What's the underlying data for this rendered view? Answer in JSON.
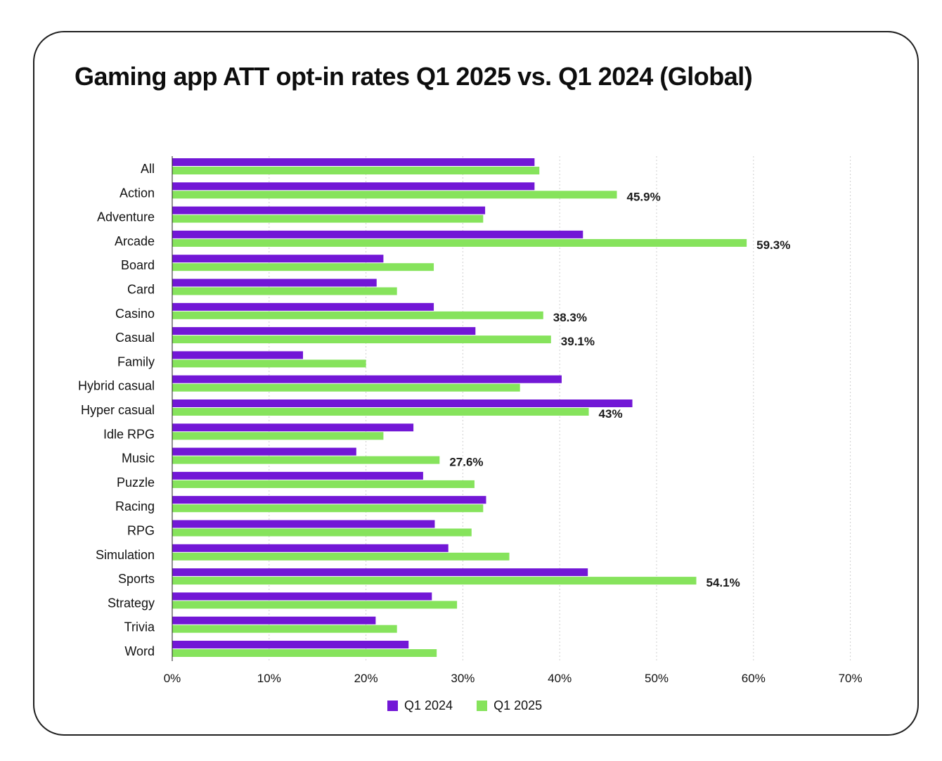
{
  "title": "Gaming app ATT opt-in rates Q1 2025 vs. Q1 2024 (Global)",
  "colors": {
    "q1_2024": "#7217d6",
    "q1_2025": "#86e35c",
    "grid": "#cfcfcf",
    "axis": "#222222"
  },
  "chart_data": {
    "type": "bar",
    "orientation": "horizontal",
    "title": "Gaming app ATT opt-in rates Q1 2025 vs. Q1 2024 (Global)",
    "xlabel": "",
    "ylabel": "",
    "xlim": [
      0,
      70
    ],
    "x_ticks": [
      "0%",
      "10%",
      "20%",
      "30%",
      "40%",
      "50%",
      "60%",
      "70%"
    ],
    "x_tick_values": [
      0,
      10,
      20,
      30,
      40,
      50,
      60,
      70
    ],
    "grid": "vertical dotted",
    "legend_position": "bottom",
    "categories": [
      "All",
      "Action",
      "Adventure",
      "Arcade",
      "Board",
      "Card",
      "Casino",
      "Casual",
      "Family",
      "Hybrid casual",
      "Hyper casual",
      "Idle RPG",
      "Music",
      "Puzzle",
      "Racing",
      "RPG",
      "Simulation",
      "Sports",
      "Strategy",
      "Trivia",
      "Word"
    ],
    "series": [
      {
        "name": "Q1 2024",
        "color": "#7217d6",
        "values": [
          37.4,
          37.4,
          32.3,
          42.4,
          21.8,
          21.1,
          27.0,
          31.3,
          13.5,
          40.2,
          47.5,
          24.9,
          19.0,
          25.9,
          32.4,
          27.1,
          28.5,
          42.9,
          26.8,
          21.0,
          24.4
        ],
        "labels": [
          "",
          "",
          "",
          "",
          "",
          "",
          "",
          "",
          "",
          "",
          "",
          "",
          "",
          "",
          "",
          "",
          "",
          "",
          "",
          "",
          ""
        ]
      },
      {
        "name": "Q1 2025",
        "color": "#86e35c",
        "values": [
          37.9,
          45.9,
          32.1,
          59.3,
          27.0,
          23.2,
          38.3,
          39.1,
          20.0,
          35.9,
          43.0,
          21.8,
          27.6,
          31.2,
          32.1,
          30.9,
          34.8,
          54.1,
          29.4,
          23.2,
          27.3
        ],
        "labels": [
          "",
          "45.9%",
          "",
          "59.3%",
          "",
          "",
          "38.3%",
          "39.1%",
          "",
          "",
          "43%",
          "",
          "27.6%",
          "",
          "",
          "",
          "",
          "54.1%",
          "",
          "",
          ""
        ]
      }
    ]
  }
}
